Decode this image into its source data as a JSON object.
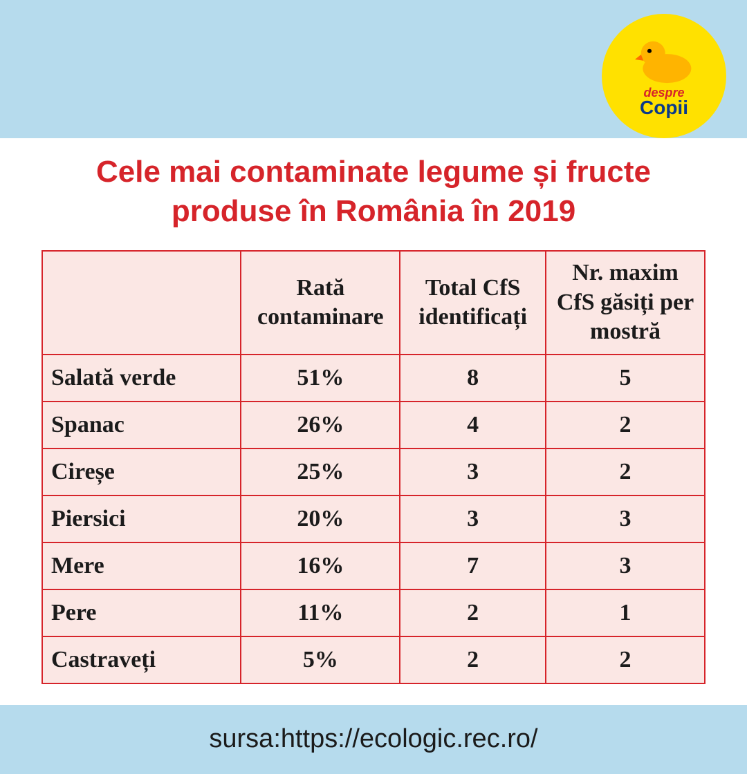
{
  "colors": {
    "header_band": "#b6dbed",
    "footer_band": "#b6dbed",
    "page_bg": "#ffffff",
    "title_text": "#d6242a",
    "table_border": "#d6242a",
    "table_bg": "#fbe7e4",
    "cell_text": "#1b1b1b",
    "logo_bg": "#ffe100",
    "logo_duck_body": "#ffb400",
    "logo_duck_beak": "#ff6a00",
    "logo_text1": "#d6242a",
    "logo_text2": "#0a3a8a",
    "footer_text": "#1b1b1b"
  },
  "logo": {
    "line1": "despre",
    "line2": "Copii",
    "icon_name": "rubber-duck-icon"
  },
  "title": "Cele mai contaminate legume și fructe produse în România în 2019",
  "table": {
    "columns": [
      "",
      "Rată contaminare",
      "Total CfS identificați",
      "Nr. maxim CfS găsiți per mostră"
    ],
    "rows": [
      [
        "Salată verde",
        "51%",
        "8",
        "5"
      ],
      [
        "Spanac",
        "26%",
        "4",
        "2"
      ],
      [
        "Cireșe",
        "25%",
        "3",
        "2"
      ],
      [
        "Piersici",
        "20%",
        "3",
        "3"
      ],
      [
        "Mere",
        "16%",
        "7",
        "3"
      ],
      [
        "Pere",
        "11%",
        "2",
        "1"
      ],
      [
        "Castraveți",
        "5%",
        "2",
        "2"
      ]
    ],
    "header_fontsize": 34,
    "cell_fontsize": 34,
    "border_width": 2
  },
  "footer": {
    "text": "sursa:https://ecologic.rec.ro/"
  }
}
